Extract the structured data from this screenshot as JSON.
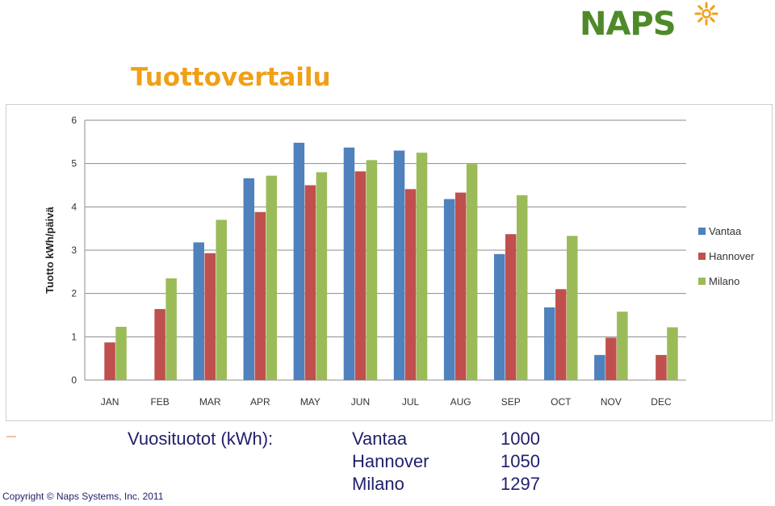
{
  "logo": {
    "text": "NAPS",
    "icon": "sun-icon",
    "color": "#4f8a2a",
    "accent": "#f0a018"
  },
  "slide": {
    "title": "Tuottovertailu"
  },
  "annual": {
    "label": "Vuosituotot (kWh):",
    "rows": [
      {
        "name": "Vantaa",
        "value": "1000"
      },
      {
        "name": "Hannover",
        "value": "1050"
      },
      {
        "name": "Milano",
        "value": "1297"
      }
    ]
  },
  "footer": {
    "copyright": "Copyright © Naps Systems, Inc. 2011"
  },
  "chart_data": {
    "type": "bar",
    "title": "",
    "xlabel": "",
    "ylabel": "Tuotto kWh/päivä",
    "ylim": [
      0,
      6
    ],
    "yticks": [
      "0",
      "1",
      "2",
      "3",
      "4",
      "5",
      "6"
    ],
    "grid": true,
    "legend": "right",
    "categories": [
      "JAN",
      "FEB",
      "MAR",
      "APR",
      "MAY",
      "JUN",
      "JUL",
      "AUG",
      "SEP",
      "OCT",
      "NOV",
      "DEC"
    ],
    "series": [
      {
        "name": "Vantaa",
        "color": "#4f81bd",
        "values": [
          0,
          0,
          3.18,
          4.66,
          5.48,
          5.37,
          5.3,
          4.18,
          2.91,
          1.68,
          0.58,
          0
        ]
      },
      {
        "name": "Hannover",
        "color": "#c0504d",
        "values": [
          0.87,
          1.64,
          2.93,
          3.88,
          4.5,
          4.82,
          4.41,
          4.33,
          3.37,
          2.1,
          0.98,
          0.58
        ]
      },
      {
        "name": "Milano",
        "color": "#9bbb59",
        "values": [
          1.23,
          2.35,
          3.7,
          4.72,
          4.8,
          5.08,
          5.25,
          4.99,
          4.27,
          3.33,
          1.58,
          1.22
        ]
      }
    ]
  }
}
